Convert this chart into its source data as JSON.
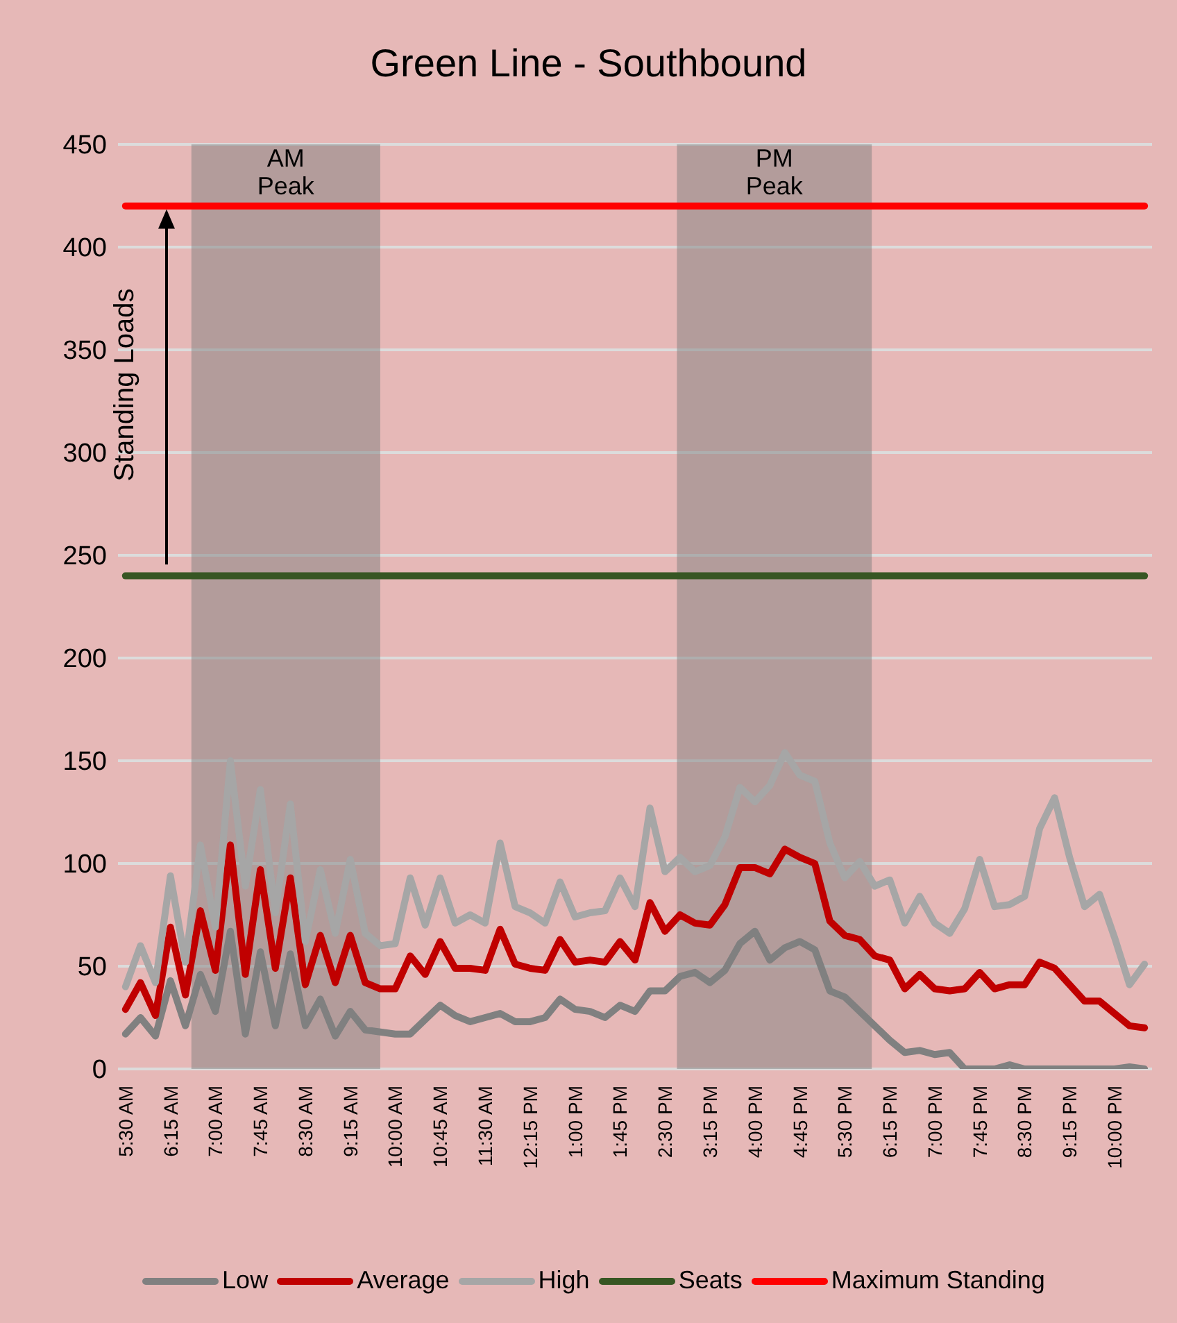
{
  "chart_data": {
    "type": "line",
    "title": "Green Line - Southbound",
    "x": [
      5.5,
      5.75,
      6,
      6.25,
      6.5,
      6.75,
      7,
      7.25,
      7.5,
      7.75,
      8,
      8.25,
      8.5,
      8.75,
      9,
      9.25,
      9.5,
      9.75,
      10,
      10.25,
      10.5,
      10.75,
      11,
      11.25,
      11.5,
      11.75,
      12,
      12.25,
      12.5,
      12.75,
      13,
      13.25,
      13.5,
      13.75,
      14,
      14.25,
      14.5,
      14.75,
      15,
      15.25,
      15.5,
      15.75,
      16,
      16.25,
      16.5,
      16.75,
      17,
      17.25,
      17.5,
      17.75,
      18,
      18.25,
      18.5,
      18.75,
      19,
      19.25,
      19.5,
      19.75,
      20,
      20.25,
      20.5,
      20.75,
      21,
      21.25,
      21.5,
      21.75,
      22,
      22.25,
      22.5
    ],
    "xlim": [
      5.375,
      22.625
    ],
    "xticks": [
      {
        "value": 5.5,
        "label": "5:30 AM"
      },
      {
        "value": 6.25,
        "label": "6:15 AM"
      },
      {
        "value": 7,
        "label": "7:00 AM"
      },
      {
        "value": 7.75,
        "label": "7:45 AM"
      },
      {
        "value": 8.5,
        "label": "8:30 AM"
      },
      {
        "value": 9.25,
        "label": "9:15 AM"
      },
      {
        "value": 10,
        "label": "10:00 AM"
      },
      {
        "value": 10.75,
        "label": "10:45 AM"
      },
      {
        "value": 11.5,
        "label": "11:30 AM"
      },
      {
        "value": 12.25,
        "label": "12:15 PM"
      },
      {
        "value": 13,
        "label": "1:00 PM"
      },
      {
        "value": 13.75,
        "label": "1:45 PM"
      },
      {
        "value": 14.5,
        "label": "2:30 PM"
      },
      {
        "value": 15.25,
        "label": "3:15 PM"
      },
      {
        "value": 16,
        "label": "4:00 PM"
      },
      {
        "value": 16.75,
        "label": "4:45 PM"
      },
      {
        "value": 17.5,
        "label": "5:30 PM"
      },
      {
        "value": 18.25,
        "label": "6:15 PM"
      },
      {
        "value": 19,
        "label": "7:00 PM"
      },
      {
        "value": 19.75,
        "label": "7:45 PM"
      },
      {
        "value": 20.5,
        "label": "8:30 PM"
      },
      {
        "value": 21.25,
        "label": "9:15 PM"
      },
      {
        "value": 22,
        "label": "10:00 PM"
      }
    ],
    "ylim": [
      0,
      450
    ],
    "yticks": [
      0,
      50,
      100,
      150,
      200,
      250,
      300,
      350,
      400,
      450
    ],
    "grid": "y",
    "legend": "bottom",
    "marker": "none",
    "line_style": "solid",
    "series": [
      {
        "name": "Low",
        "color": "#808080",
        "values": [
          17,
          25,
          16,
          43,
          21,
          46,
          28,
          67,
          17,
          57,
          21,
          56,
          21,
          34,
          16,
          28,
          19,
          18,
          17,
          17,
          24,
          31,
          26,
          23,
          25,
          27,
          23,
          23,
          25,
          34,
          29,
          28,
          25,
          31,
          28,
          38,
          38,
          45,
          47,
          42,
          48,
          61,
          67,
          53,
          59,
          62,
          58,
          38,
          35,
          28,
          21,
          14,
          8,
          9,
          7,
          8,
          0,
          0,
          0,
          2,
          0,
          0,
          0,
          0,
          0,
          0,
          0,
          1,
          0
        ]
      },
      {
        "name": "Average",
        "color": "#c00000",
        "values": [
          29,
          42,
          26,
          69,
          36,
          77,
          48,
          109,
          46,
          97,
          49,
          93,
          41,
          65,
          42,
          65,
          42,
          39,
          39,
          55,
          46,
          62,
          49,
          49,
          48,
          68,
          51,
          49,
          48,
          63,
          52,
          53,
          52,
          62,
          53,
          81,
          67,
          75,
          71,
          70,
          80,
          98,
          98,
          95,
          107,
          103,
          100,
          72,
          65,
          63,
          55,
          53,
          39,
          46,
          39,
          38,
          39,
          47,
          39,
          41,
          41,
          52,
          49,
          41,
          33,
          33,
          27,
          21,
          20
        ]
      },
      {
        "name": "High",
        "color": "#a6a6a6",
        "values": [
          40,
          60,
          42,
          94,
          52,
          109,
          69,
          150,
          89,
          136,
          76,
          129,
          62,
          97,
          66,
          102,
          66,
          60,
          61,
          93,
          70,
          93,
          71,
          75,
          71,
          110,
          79,
          76,
          71,
          91,
          74,
          76,
          77,
          93,
          79,
          127,
          96,
          103,
          96,
          99,
          113,
          137,
          130,
          138,
          154,
          143,
          140,
          110,
          93,
          101,
          89,
          92,
          71,
          84,
          71,
          66,
          78,
          102,
          79,
          80,
          84,
          117,
          132,
          103,
          79,
          85,
          64,
          41,
          51
        ]
      },
      {
        "name": "Seats",
        "color": "#375623",
        "values": [
          240,
          240,
          240,
          240,
          240,
          240,
          240,
          240,
          240,
          240,
          240,
          240,
          240,
          240,
          240,
          240,
          240,
          240,
          240,
          240,
          240,
          240,
          240,
          240,
          240,
          240,
          240,
          240,
          240,
          240,
          240,
          240,
          240,
          240,
          240,
          240,
          240,
          240,
          240,
          240,
          240,
          240,
          240,
          240,
          240,
          240,
          240,
          240,
          240,
          240,
          240,
          240,
          240,
          240,
          240,
          240,
          240,
          240,
          240,
          240,
          240,
          240,
          240,
          240,
          240,
          240,
          240,
          240,
          240
        ]
      },
      {
        "name": "Maximum Standing",
        "color": "#ff0000",
        "values": [
          420,
          420,
          420,
          420,
          420,
          420,
          420,
          420,
          420,
          420,
          420,
          420,
          420,
          420,
          420,
          420,
          420,
          420,
          420,
          420,
          420,
          420,
          420,
          420,
          420,
          420,
          420,
          420,
          420,
          420,
          420,
          420,
          420,
          420,
          420,
          420,
          420,
          420,
          420,
          420,
          420,
          420,
          420,
          420,
          420,
          420,
          420,
          420,
          420,
          420,
          420,
          420,
          420,
          420,
          420,
          420,
          420,
          420,
          420,
          420,
          420,
          420,
          420,
          420,
          420,
          420,
          420,
          420,
          420
        ]
      }
    ],
    "bands": [
      {
        "axis": "x",
        "from": 6.6,
        "to": 9.75,
        "label": "AM Peak",
        "color": "#7f7f7f"
      },
      {
        "axis": "x",
        "from": 14.7,
        "to": 17.95,
        "label": "PM Peak",
        "color": "#7f7f7f"
      }
    ],
    "annotations": [
      "Standing Loads"
    ]
  }
}
